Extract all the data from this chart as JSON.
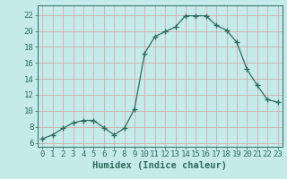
{
  "x": [
    0,
    1,
    2,
    3,
    4,
    5,
    6,
    7,
    8,
    9,
    10,
    11,
    12,
    13,
    14,
    15,
    16,
    17,
    18,
    19,
    20,
    21,
    22,
    23
  ],
  "y": [
    6.5,
    7.0,
    7.8,
    8.5,
    8.8,
    8.8,
    7.9,
    7.0,
    7.8,
    10.2,
    17.2,
    19.3,
    19.9,
    20.5,
    21.9,
    21.9,
    21.9,
    20.7,
    20.1,
    18.6,
    15.2,
    13.2,
    11.4,
    11.1
  ],
  "line_color": "#2e6b5e",
  "marker": "+",
  "marker_size": 5,
  "marker_linewidth": 1.0,
  "background_color": "#c5eaea",
  "grid_color": "#d4a0a0",
  "xlabel": "Humidex (Indice chaleur)",
  "xlim": [
    -0.5,
    23.5
  ],
  "ylim": [
    5.5,
    23.2
  ],
  "yticks": [
    6,
    8,
    10,
    12,
    14,
    16,
    18,
    20,
    22
  ],
  "xticks": [
    0,
    1,
    2,
    3,
    4,
    5,
    6,
    7,
    8,
    9,
    10,
    11,
    12,
    13,
    14,
    15,
    16,
    17,
    18,
    19,
    20,
    21,
    22,
    23
  ],
  "xlabel_fontsize": 7.5,
  "tick_fontsize": 6.5,
  "line_width": 0.9
}
